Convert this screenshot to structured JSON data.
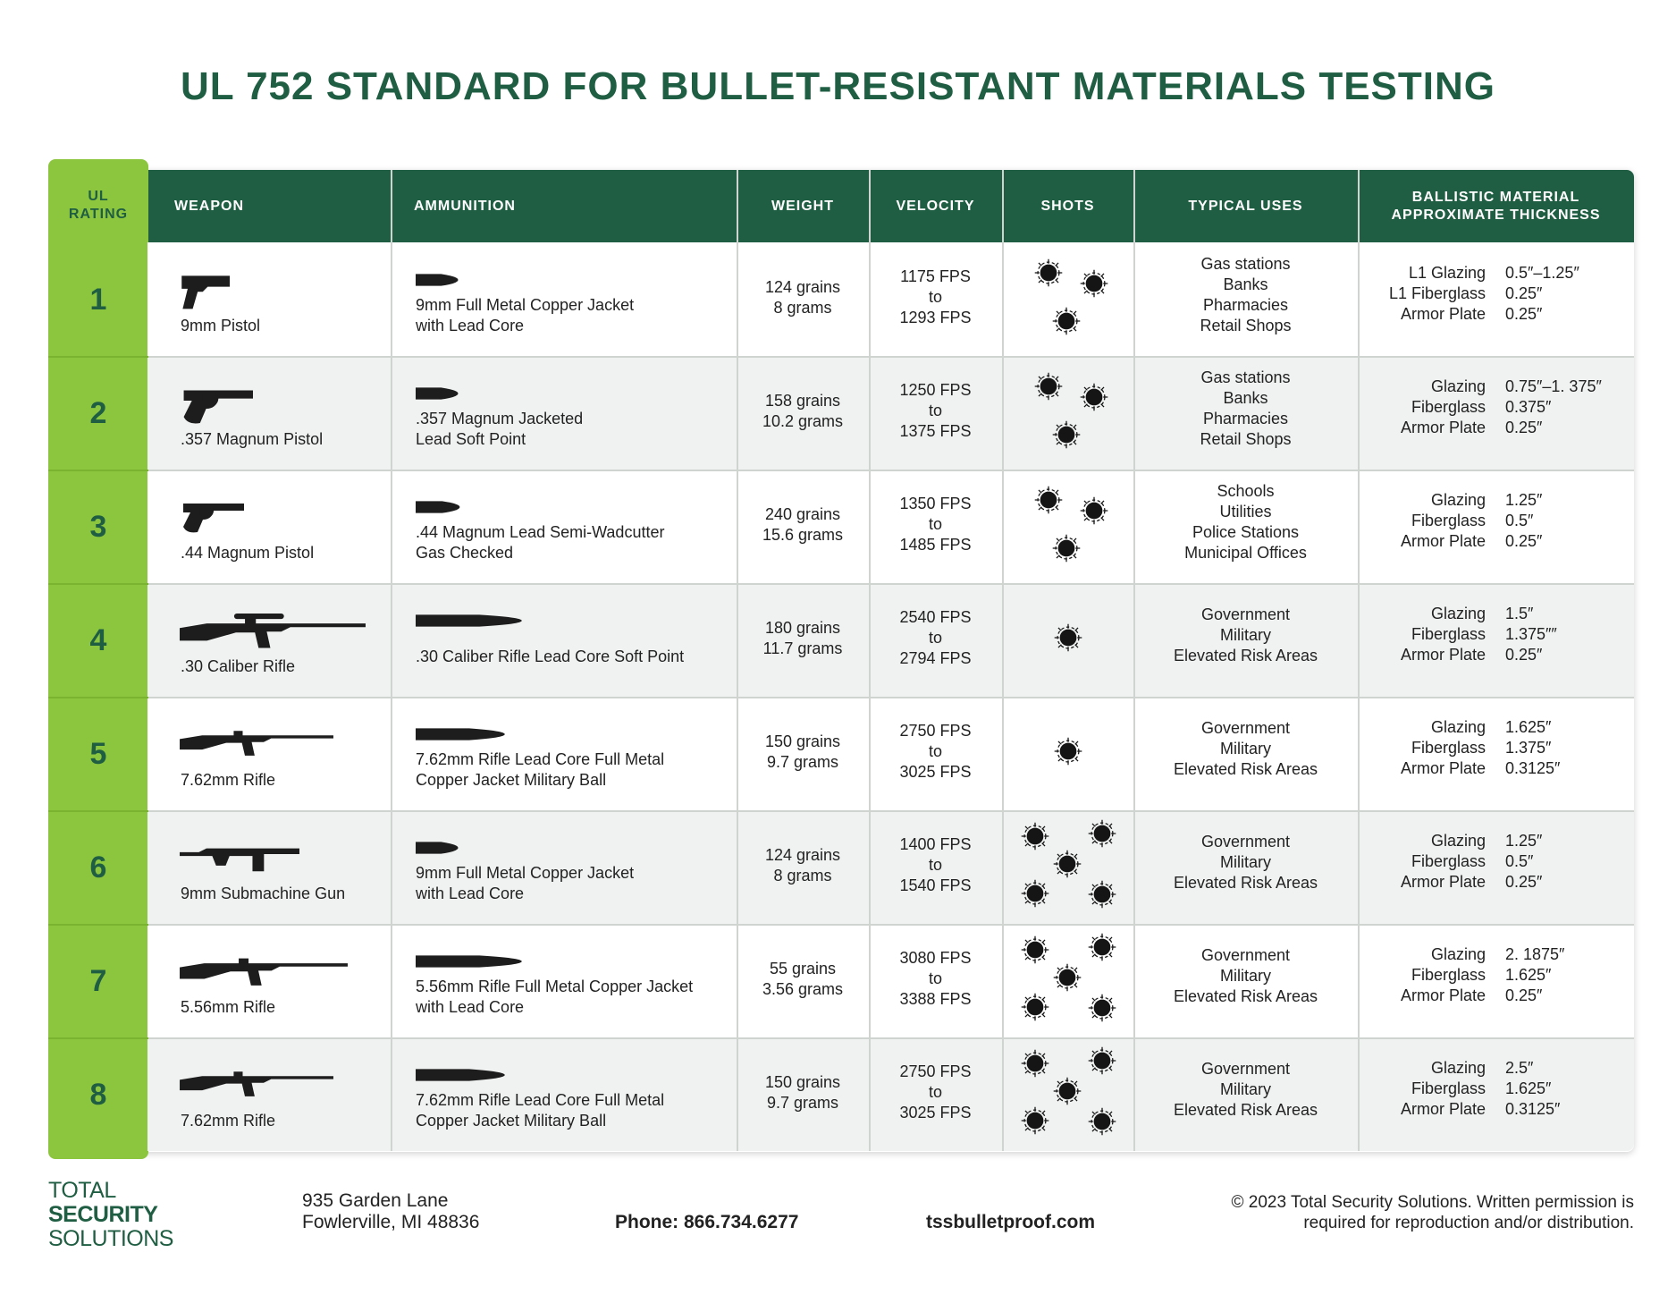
{
  "header": {
    "title": "UL 752 STANDARD FOR BULLET-RESISTANT MATERIALS TESTING"
  },
  "table": {
    "headers": {
      "rating": [
        "UL",
        "RATING"
      ],
      "weapon": "WEAPON",
      "ammunition": "AMMUNITION",
      "weight": "WEIGHT",
      "velocity": "VELOCITY",
      "shots": "SHOTS",
      "uses": "TYPICAL USES",
      "thickness": [
        "BALLISTIC MATERIAL",
        "APPROXIMATE THICKNESS"
      ]
    },
    "rows": [
      {
        "rating": 1,
        "weapon": "9mm Pistol",
        "ammunition": [
          "9mm Full Metal Copper Jacket",
          "with Lead Core"
        ],
        "weight": [
          "124 grains",
          "8 grams"
        ],
        "velocity": [
          "1175 FPS",
          "to",
          "1293 FPS"
        ],
        "shots": 3,
        "uses": [
          "Gas stations",
          "Banks",
          "Pharmacies",
          "Retail Shops"
        ],
        "thickness": [
          {
            "material": "L1 Glazing",
            "value": "0.5″–1.25″"
          },
          {
            "material": "L1 Fiberglass",
            "value": "0.25″"
          },
          {
            "material": "Armor Plate",
            "value": "0.25″"
          }
        ]
      },
      {
        "rating": 2,
        "weapon": ".357 Magnum Pistol",
        "ammunition": [
          ".357 Magnum Jacketed",
          "Lead Soft Point"
        ],
        "weight": [
          "158 grains",
          "10.2 grams"
        ],
        "velocity": [
          "1250 FPS",
          "to",
          "1375 FPS"
        ],
        "shots": 3,
        "uses": [
          "Gas stations",
          "Banks",
          "Pharmacies",
          "Retail Shops"
        ],
        "thickness": [
          {
            "material": "Glazing",
            "value": "0.75″–1. 375″"
          },
          {
            "material": "Fiberglass",
            "value": "0.375″"
          },
          {
            "material": "Armor Plate",
            "value": "0.25″"
          }
        ]
      },
      {
        "rating": 3,
        "weapon": ".44 Magnum Pistol",
        "ammunition": [
          ".44 Magnum Lead Semi-Wadcutter",
          "Gas Checked"
        ],
        "weight": [
          "240 grains",
          "15.6 grams"
        ],
        "velocity": [
          "1350 FPS",
          "to",
          "1485 FPS"
        ],
        "shots": 3,
        "uses": [
          "Schools",
          "Utilities",
          "Police Stations",
          "Municipal Offices"
        ],
        "thickness": [
          {
            "material": "Glazing",
            "value": "1.25″"
          },
          {
            "material": "Fiberglass",
            "value": "0.5″"
          },
          {
            "material": "Armor Plate",
            "value": "0.25″"
          }
        ]
      },
      {
        "rating": 4,
        "weapon": ".30 Caliber Rifle",
        "ammunition": [
          ".30 Caliber Rifle Lead Core Soft Point"
        ],
        "weight": [
          "180 grains",
          "11.7 grams"
        ],
        "velocity": [
          "2540 FPS",
          "to",
          "2794 FPS"
        ],
        "shots": 1,
        "uses": [
          "Government",
          "Military",
          "Elevated Risk Areas"
        ],
        "thickness": [
          {
            "material": "Glazing",
            "value": "1.5″"
          },
          {
            "material": "Fiberglass",
            "value": "1.375″″"
          },
          {
            "material": "Armor Plate",
            "value": "0.25″"
          }
        ]
      },
      {
        "rating": 5,
        "weapon": "7.62mm Rifle",
        "ammunition": [
          "7.62mm Rifle Lead Core Full Metal",
          "Copper Jacket Military Ball"
        ],
        "weight": [
          "150 grains",
          "9.7 grams"
        ],
        "velocity": [
          "2750 FPS",
          "to",
          "3025 FPS"
        ],
        "shots": 1,
        "uses": [
          "Government",
          "Military",
          "Elevated Risk Areas"
        ],
        "thickness": [
          {
            "material": "Glazing",
            "value": "1.625″"
          },
          {
            "material": "Fiberglass",
            "value": "1.375″"
          },
          {
            "material": "Armor Plate",
            "value": "0.3125″"
          }
        ]
      },
      {
        "rating": 6,
        "weapon": "9mm Submachine Gun",
        "ammunition": [
          "9mm Full Metal Copper Jacket",
          "with Lead Core"
        ],
        "weight": [
          "124 grains",
          "8 grams"
        ],
        "velocity": [
          "1400 FPS",
          "to",
          "1540 FPS"
        ],
        "shots": 5,
        "uses": [
          "Government",
          "Military",
          "Elevated Risk Areas"
        ],
        "thickness": [
          {
            "material": "Glazing",
            "value": "1.25″"
          },
          {
            "material": "Fiberglass",
            "value": "0.5″"
          },
          {
            "material": "Armor Plate",
            "value": "0.25″"
          }
        ]
      },
      {
        "rating": 7,
        "weapon": "5.56mm Rifle",
        "ammunition": [
          "5.56mm Rifle Full Metal Copper Jacket",
          "with Lead Core"
        ],
        "weight": [
          "55 grains",
          "3.56 grams"
        ],
        "velocity": [
          "3080 FPS",
          "to",
          "3388 FPS"
        ],
        "shots": 5,
        "uses": [
          "Government",
          "Military",
          "Elevated Risk Areas"
        ],
        "thickness": [
          {
            "material": "Glazing",
            "value": "2. 1875″"
          },
          {
            "material": "Fiberglass",
            "value": "1.625″"
          },
          {
            "material": "Armor Plate",
            "value": "0.25″"
          }
        ]
      },
      {
        "rating": 8,
        "weapon": "7.62mm Rifle",
        "ammunition": [
          "7.62mm Rifle Lead Core Full Metal",
          "Copper Jacket Military Ball"
        ],
        "weight": [
          "150 grains",
          "9.7 grams"
        ],
        "velocity": [
          "2750 FPS",
          "to",
          "3025 FPS"
        ],
        "shots": 5,
        "uses": [
          "Government",
          "Military",
          "Elevated Risk Areas"
        ],
        "thickness": [
          {
            "material": "Glazing",
            "value": "2.5″"
          },
          {
            "material": "Fiberglass",
            "value": "1.625″"
          },
          {
            "material": "Armor Plate",
            "value": "0.3125″"
          }
        ]
      }
    ]
  },
  "footer": {
    "logo": [
      "TOTAL",
      "SECURITY",
      "SOLUTIONS"
    ],
    "address": [
      "935 Garden Lane",
      "Fowlerville, MI 48836"
    ],
    "phone": "Phone: 866.734.6277",
    "website": "tssbulletproof.com",
    "copyright": [
      "© 2023 Total Security Solutions. Written permission is",
      "required for reproduction and/or distribution."
    ]
  }
}
